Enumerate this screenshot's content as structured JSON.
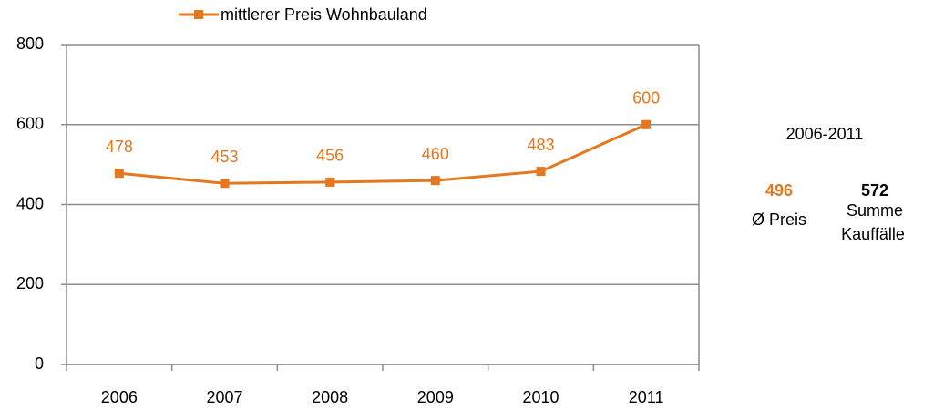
{
  "chart_data": {
    "type": "line",
    "categories": [
      "2006",
      "2007",
      "2008",
      "2009",
      "2010",
      "2011"
    ],
    "series": [
      {
        "name": "mittlerer Preis Wohnbauland",
        "color": "#e5771e",
        "values": [
          478,
          453,
          456,
          460,
          483,
          600
        ]
      }
    ],
    "ylim": [
      0,
      800
    ],
    "yticks": [
      0,
      200,
      400,
      600,
      800
    ],
    "grid": true,
    "legend": "top",
    "side_panel": {
      "period": "2006-2011",
      "avg_price": 496,
      "avg_price_label": "Ø Preis",
      "total_sales": 572,
      "total_sales_label": [
        "Summe",
        "Kauffälle"
      ]
    }
  }
}
